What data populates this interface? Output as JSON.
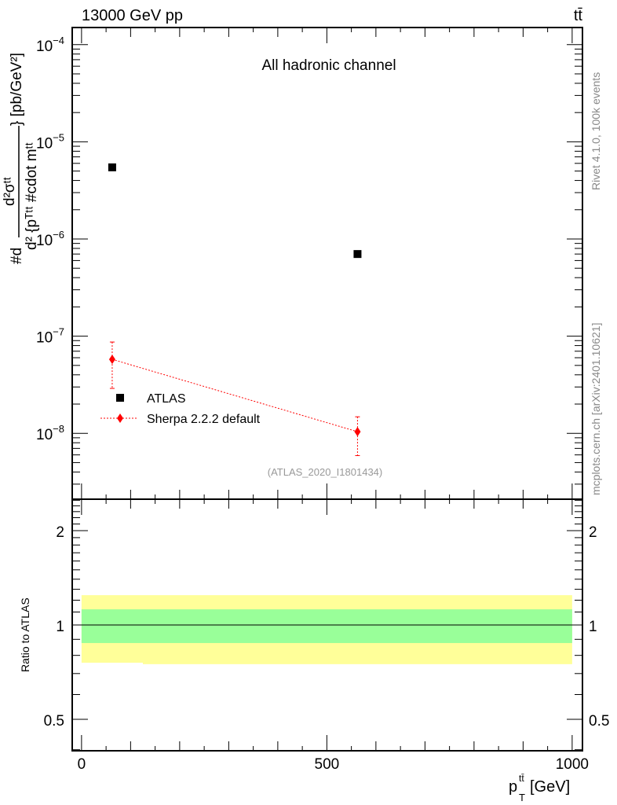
{
  "header": {
    "left": "13000 GeV pp",
    "right": "tt̄"
  },
  "side_text": {
    "rivet": "Rivet 4.1.0,  100k events",
    "mcplots": "mcplots.cern.ch [arXiv:2401.10621]"
  },
  "colors": {
    "atlas": "#000000",
    "sherpa": "#ff0000",
    "band_inner": "#99ff99",
    "band_outer": "#ffff99"
  },
  "chart_data": [
    {
      "type": "scatter",
      "panel": "main",
      "title": "All hadronic channel",
      "analysis_label": "(ATLAS_2020_I1801434)",
      "ylabel_parts": {
        "prefix": "#d",
        "numerator": "d²σᵗᵗ",
        "denominator": "d² {pᵀᵗᵗ #cdot mᵗᵗ",
        "suffix": "} [pb/GeV²]"
      },
      "yscale": "log",
      "ylim": [
        2.1e-09,
        0.00015
      ],
      "xlim": [
        -19,
        1021
      ],
      "ytick_labels": [
        {
          "value": 0.0001,
          "base": "10",
          "exp": "−4"
        },
        {
          "value": 1e-05,
          "base": "10",
          "exp": "−5"
        },
        {
          "value": 1e-06,
          "base": "10",
          "exp": "−6"
        },
        {
          "value": 1e-07,
          "base": "10",
          "exp": "−7"
        },
        {
          "value": 1e-08,
          "base": "10",
          "exp": "−8"
        }
      ],
      "legend_position": "bottom-left",
      "series": [
        {
          "name": "ATLAS",
          "marker": "square",
          "x": [
            62.5,
            562.5
          ],
          "y": [
            5.46e-06,
            7e-07
          ]
        },
        {
          "name": "Sherpa 2.2.2 default",
          "marker": "diamond",
          "line": "dotted",
          "x": [
            62.5,
            562.5
          ],
          "y": [
            5.77e-08,
            1.04e-08
          ],
          "y_err_high": [
            8.7e-08,
            1.48e-08
          ],
          "y_err_low": [
            2.9e-08,
            5.9e-09
          ]
        }
      ]
    },
    {
      "type": "area",
      "panel": "ratio",
      "ylabel": "Ratio to ATLAS",
      "xlabel": "p_T^{tt̄} [GeV]",
      "xlabel_parts": {
        "main": "p",
        "sub": "T",
        "sup": "tt̄",
        "unit": " [GeV]"
      },
      "yscale": "log",
      "ylim": [
        0.397,
        2.52
      ],
      "xlim": [
        -19,
        1021
      ],
      "ytick_labels": [
        {
          "value": 0.5,
          "label": "0.5"
        },
        {
          "value": 1,
          "label": "1"
        },
        {
          "value": 2,
          "label": "2"
        }
      ],
      "xtick_labels": [
        {
          "value": 0,
          "label": "0"
        },
        {
          "value": 500,
          "label": "500"
        },
        {
          "value": 1000,
          "label": "1000"
        }
      ],
      "bins": [
        [
          0,
          125
        ],
        [
          125,
          1000
        ]
      ],
      "band_inner": {
        "low": [
          0.876,
          0.876
        ],
        "high": [
          1.122,
          1.122
        ]
      },
      "band_outer": {
        "low": [
          0.758,
          0.75
        ],
        "high": [
          1.245,
          1.245
        ]
      },
      "reference_line": 1
    }
  ]
}
